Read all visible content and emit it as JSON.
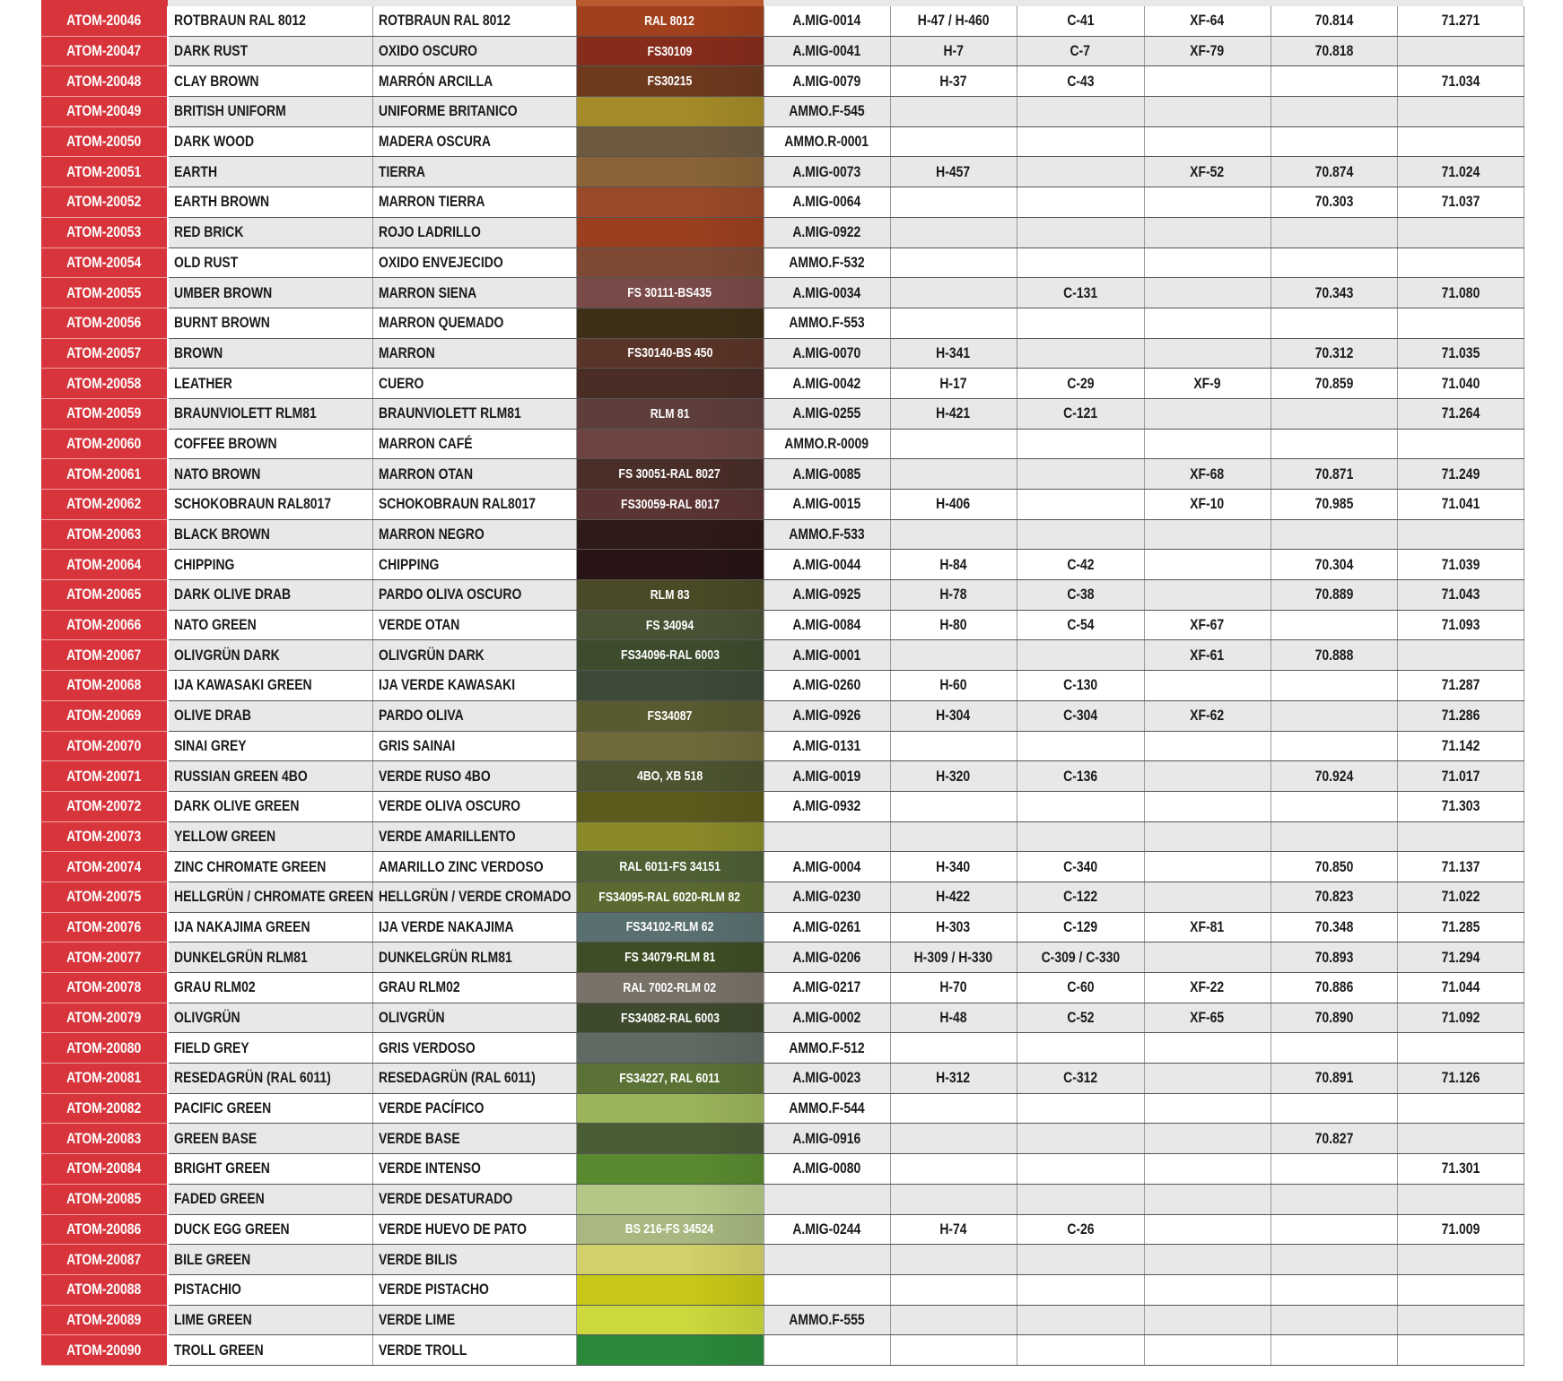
{
  "rows": [
    {
      "id": "ATOM-20046",
      "en": "ROTBRAUN RAL 8012",
      "es": "ROTBRAUN RAL 8012",
      "ref": "RAL 8012",
      "color": "#a0401c",
      "mig": "A.MIG-0014",
      "h": "H-47 / H-460",
      "c": "C-41",
      "xf": "XF-64",
      "v70": "70.814",
      "v71": "71.271"
    },
    {
      "id": "ATOM-20047",
      "en": "DARK RUST",
      "es": "OXIDO OSCURO",
      "ref": "FS30109",
      "color": "#862c1c",
      "mig": "A.MIG-0041",
      "h": "H-7",
      "c": "C-7",
      "xf": "XF-79",
      "v70": "70.818",
      "v71": ""
    },
    {
      "id": "ATOM-20048",
      "en": "CLAY BROWN",
      "es": "MARRÓN ARCILLA",
      "ref": "FS30215",
      "color": "#6e3a1e",
      "mig": "A.MIG-0079",
      "h": "H-37",
      "c": "C-43",
      "xf": "",
      "v70": "",
      "v71": "71.034"
    },
    {
      "id": "ATOM-20049",
      "en": "BRITISH UNIFORM",
      "es": "UNIFORME BRITANICO",
      "ref": "",
      "color": "#a48a28",
      "mig": "AMMO.F-545",
      "h": "",
      "c": "",
      "xf": "",
      "v70": "",
      "v71": ""
    },
    {
      "id": "ATOM-20050",
      "en": "DARK WOOD",
      "es": "MADERA OSCURA",
      "ref": "",
      "color": "#6e5a40",
      "mig": "AMMO.R-0001",
      "h": "",
      "c": "",
      "xf": "",
      "v70": "",
      "v71": ""
    },
    {
      "id": "ATOM-20051",
      "en": "EARTH",
      "es": "TIERRA",
      "ref": "",
      "color": "#8a6438",
      "mig": "A.MIG-0073",
      "h": "H-457",
      "c": "",
      "xf": "XF-52",
      "v70": "70.874",
      "v71": "71.024"
    },
    {
      "id": "ATOM-20052",
      "en": "EARTH BROWN",
      "es": "MARRON TIERRA",
      "ref": "",
      "color": "#9a4a2a",
      "mig": "A.MIG-0064",
      "h": "",
      "c": "",
      "xf": "",
      "v70": "70.303",
      "v71": "71.037"
    },
    {
      "id": "ATOM-20053",
      "en": "RED BRICK",
      "es": "ROJO LADRILLO",
      "ref": "",
      "color": "#9a4020",
      "mig": "A.MIG-0922",
      "h": "",
      "c": "",
      "xf": "",
      "v70": "",
      "v71": ""
    },
    {
      "id": "ATOM-20054",
      "en": "OLD RUST",
      "es": "OXIDO ENVEJECIDO",
      "ref": "",
      "color": "#7e4a34",
      "mig": "AMMO.F-532",
      "h": "",
      "c": "",
      "xf": "",
      "v70": "",
      "v71": ""
    },
    {
      "id": "ATOM-20055",
      "en": "UMBER BROWN",
      "es": "MARRON SIENA",
      "ref": "FS 30111-BS435",
      "color": "#7a4a48",
      "mig": "A.MIG-0034",
      "h": "",
      "c": "C-131",
      "xf": "",
      "v70": "70.343",
      "v71": "71.080"
    },
    {
      "id": "ATOM-20056",
      "en": "BURNT BROWN",
      "es": "MARRON QUEMADO",
      "ref": "",
      "color": "#3e3018",
      "mig": "AMMO.F-553",
      "h": "",
      "c": "",
      "xf": "",
      "v70": "",
      "v71": ""
    },
    {
      "id": "ATOM-20057",
      "en": "BROWN",
      "es": "MARRON",
      "ref": "FS30140-BS 450",
      "color": "#5a3428",
      "mig": "A.MIG-0070",
      "h": "H-341",
      "c": "",
      "xf": "",
      "v70": "70.312",
      "v71": "71.035"
    },
    {
      "id": "ATOM-20058",
      "en": "LEATHER",
      "es": "CUERO",
      "ref": "",
      "color": "#4a2e26",
      "mig": "A.MIG-0042",
      "h": "H-17",
      "c": "C-29",
      "xf": "XF-9",
      "v70": "70.859",
      "v71": "71.040"
    },
    {
      "id": "ATOM-20059",
      "en": "BRAUNVIOLETT RLM81",
      "es": "BRAUNVIOLETT RLM81",
      "ref": "RLM 81",
      "color": "#5e3e3a",
      "mig": "A.MIG-0255",
      "h": "H-421",
      "c": "C-121",
      "xf": "",
      "v70": "",
      "v71": "71.264"
    },
    {
      "id": "ATOM-20060",
      "en": "COFFEE BROWN",
      "es": "MARRON CAFÉ",
      "ref": "",
      "color": "#6e4442",
      "mig": "AMMO.R-0009",
      "h": "",
      "c": "",
      "xf": "",
      "v70": "",
      "v71": ""
    },
    {
      "id": "ATOM-20061",
      "en": "NATO BROWN",
      "es": "MARRON OTAN",
      "ref": "FS 30051-RAL 8027",
      "color": "#4a2e28",
      "mig": "A.MIG-0085",
      "h": "",
      "c": "",
      "xf": "XF-68",
      "v70": "70.871",
      "v71": "71.249"
    },
    {
      "id": "ATOM-20062",
      "en": "SCHOKOBRAUN RAL8017",
      "es": "SCHOKOBRAUN RAL8017",
      "ref": "FS30059-RAL 8017",
      "color": "#5a3432",
      "mig": "A.MIG-0015",
      "h": "H-406",
      "c": "",
      "xf": "XF-10",
      "v70": "70.985",
      "v71": "71.041"
    },
    {
      "id": "ATOM-20063",
      "en": "BLACK BROWN",
      "es": "MARRON NEGRO",
      "ref": "",
      "color": "#2e1a18",
      "mig": "AMMO.F-533",
      "h": "",
      "c": "",
      "xf": "",
      "v70": "",
      "v71": ""
    },
    {
      "id": "ATOM-20064",
      "en": "CHIPPING",
      "es": "CHIPPING",
      "ref": "",
      "color": "#281414",
      "mig": "A.MIG-0044",
      "h": "H-84",
      "c": "C-42",
      "xf": "",
      "v70": "70.304",
      "v71": "71.039"
    },
    {
      "id": "ATOM-20065",
      "en": "DARK OLIVE DRAB",
      "es": "PARDO OLIVA OSCURO",
      "ref": "RLM 83",
      "color": "#4a4a26",
      "mig": "A.MIG-0925",
      "h": "H-78",
      "c": "C-38",
      "xf": "",
      "v70": "70.889",
      "v71": "71.043"
    },
    {
      "id": "ATOM-20066",
      "en": "NATO GREEN",
      "es": "VERDE OTAN",
      "ref": "FS 34094",
      "color": "#4a5236",
      "mig": "A.MIG-0084",
      "h": "H-80",
      "c": "C-54",
      "xf": "XF-67",
      "v70": "",
      "v71": "71.093"
    },
    {
      "id": "ATOM-20067",
      "en": "OLIVGRÜN DARK",
      "es": "OLIVGRÜN DARK",
      "ref": "FS34096-RAL 6003",
      "color": "#3e4c2e",
      "mig": "A.MIG-0001",
      "h": "",
      "c": "",
      "xf": "XF-61",
      "v70": "70.888",
      "v71": ""
    },
    {
      "id": "ATOM-20068",
      "en": "IJA KAWASAKI GREEN",
      "es": "IJA VERDE KAWASAKI",
      "ref": "",
      "color": "#3e4a38",
      "mig": "A.MIG-0260",
      "h": "H-60",
      "c": "C-130",
      "xf": "",
      "v70": "",
      "v71": "71.287"
    },
    {
      "id": "ATOM-20069",
      "en": "OLIVE DRAB",
      "es": "PARDO OLIVA",
      "ref": "FS34087",
      "color": "#5a5a30",
      "mig": "A.MIG-0926",
      "h": "H-304",
      "c": "C-304",
      "xf": "XF-62",
      "v70": "",
      "v71": "71.286"
    },
    {
      "id": "ATOM-20070",
      "en": "SINAI GREY",
      "es": "GRIS SAINAI",
      "ref": "",
      "color": "#706a3a",
      "mig": "A.MIG-0131",
      "h": "",
      "c": "",
      "xf": "",
      "v70": "",
      "v71": "71.142"
    },
    {
      "id": "ATOM-20071",
      "en": "RUSSIAN GREEN 4BO",
      "es": "VERDE RUSO 4BO",
      "ref": "4BO, XB 518",
      "color": "#4c5430",
      "mig": "A.MIG-0019",
      "h": "H-320",
      "c": "C-136",
      "xf": "",
      "v70": "70.924",
      "v71": "71.017"
    },
    {
      "id": "ATOM-20072",
      "en": "DARK OLIVE GREEN",
      "es": "VERDE OLIVA OSCURO",
      "ref": "",
      "color": "#5c5a1c",
      "mig": "A.MIG-0932",
      "h": "",
      "c": "",
      "xf": "",
      "v70": "",
      "v71": "71.303"
    },
    {
      "id": "ATOM-20073",
      "en": "YELLOW GREEN",
      "es": "VERDE AMARILLENTO",
      "ref": "",
      "color": "#8a8a2a",
      "mig": "",
      "h": "",
      "c": "",
      "xf": "",
      "v70": "",
      "v71": ""
    },
    {
      "id": "ATOM-20074",
      "en": "ZINC CHROMATE GREEN",
      "es": "AMARILLO ZINC VERDOSO",
      "ref": "RAL 6011-FS 34151",
      "color": "#4e6034",
      "mig": "A.MIG-0004",
      "h": "H-340",
      "c": "C-340",
      "xf": "",
      "v70": "70.850",
      "v71": "71.137"
    },
    {
      "id": "ATOM-20075",
      "en": "HELLGRÜN / CHROMATE GREEN",
      "es": "HELLGRÜN / VERDE CROMADO",
      "ref": "FS34095-RAL 6020-RLM 82",
      "color": "#5a6a30",
      "mig": "A.MIG-0230",
      "h": "H-422",
      "c": "C-122",
      "xf": "",
      "v70": "70.823",
      "v71": "71.022"
    },
    {
      "id": "ATOM-20076",
      "en": "IJA NAKAJIMA GREEN",
      "es": "IJA VERDE NAKAJIMA",
      "ref": "FS34102-RLM 62",
      "color": "#5a7070",
      "mig": "A.MIG-0261",
      "h": "H-303",
      "c": "C-129",
      "xf": "XF-81",
      "v70": "70.348",
      "v71": "71.285"
    },
    {
      "id": "ATOM-20077",
      "en": "DUNKELGRÜN RLM81",
      "es": "DUNKELGRÜN RLM81",
      "ref": "FS 34079-RLM 81",
      "color": "#3e4e24",
      "mig": "A.MIG-0206",
      "h": "H-309 / H-330",
      "c": "C-309 / C-330",
      "xf": "",
      "v70": "70.893",
      "v71": "71.294"
    },
    {
      "id": "ATOM-20078",
      "en": "GRAU RLM02",
      "es": "GRAU RLM02",
      "ref": "RAL 7002-RLM 02",
      "color": "#787268",
      "mig": "A.MIG-0217",
      "h": "H-70",
      "c": "C-60",
      "xf": "XF-22",
      "v70": "70.886",
      "v71": "71.044"
    },
    {
      "id": "ATOM-20079",
      "en": "OLIVGRÜN",
      "es": "OLIVGRÜN",
      "ref": "FS34082-RAL 6003",
      "color": "#3e4a2e",
      "mig": "A.MIG-0002",
      "h": "H-48",
      "c": "C-52",
      "xf": "XF-65",
      "v70": "70.890",
      "v71": "71.092"
    },
    {
      "id": "ATOM-20080",
      "en": "FIELD GREY",
      "es": "GRIS VERDOSO",
      "ref": "",
      "color": "#5e6a62",
      "mig": "AMMO.F-512",
      "h": "",
      "c": "",
      "xf": "",
      "v70": "",
      "v71": ""
    },
    {
      "id": "ATOM-20081",
      "en": "RESEDAGRÜN (RAL 6011)",
      "es": "RESEDAGRÜN (RAL 6011)",
      "ref": "FS34227, RAL 6011",
      "color": "#5a7236",
      "mig": "A.MIG-0023",
      "h": "H-312",
      "c": "C-312",
      "xf": "",
      "v70": "70.891",
      "v71": "71.126"
    },
    {
      "id": "ATOM-20082",
      "en": "PACIFIC GREEN",
      "es": "VERDE PACÍFICO",
      "ref": "",
      "color": "#9ab45a",
      "mig": "AMMO.F-544",
      "h": "",
      "c": "",
      "xf": "",
      "v70": "",
      "v71": ""
    },
    {
      "id": "ATOM-20083",
      "en": "GREEN BASE",
      "es": "VERDE BASE",
      "ref": "",
      "color": "#4a5e36",
      "mig": "A.MIG-0916",
      "h": "",
      "c": "",
      "xf": "",
      "v70": "70.827",
      "v71": ""
    },
    {
      "id": "ATOM-20084",
      "en": "BRIGHT GREEN",
      "es": "VERDE INTENSO",
      "ref": "",
      "color": "#5a8a30",
      "mig": "A.MIG-0080",
      "h": "",
      "c": "",
      "xf": "",
      "v70": "",
      "v71": "71.301"
    },
    {
      "id": "ATOM-20085",
      "en": "FADED GREEN",
      "es": "VERDE DESATURADO",
      "ref": "",
      "color": "#b4c886",
      "mig": "",
      "h": "",
      "c": "",
      "xf": "",
      "v70": "",
      "v71": ""
    },
    {
      "id": "ATOM-20086",
      "en": "DUCK EGG GREEN",
      "es": "VERDE HUEVO DE PATO",
      "ref": "BS 216-FS 34524",
      "color": "#a8b880",
      "mig": "A.MIG-0244",
      "h": "H-74",
      "c": "C-26",
      "xf": "",
      "v70": "",
      "v71": "71.009"
    },
    {
      "id": "ATOM-20087",
      "en": "BILE GREEN",
      "es": "VERDE BILIS",
      "ref": "",
      "color": "#d2d068",
      "mig": "",
      "h": "",
      "c": "",
      "xf": "",
      "v70": "",
      "v71": ""
    },
    {
      "id": "ATOM-20088",
      "en": "PISTACHIO",
      "es": "VERDE PISTACHO",
      "ref": "",
      "color": "#c8c818",
      "mig": "",
      "h": "",
      "c": "",
      "xf": "",
      "v70": "",
      "v71": ""
    },
    {
      "id": "ATOM-20089",
      "en": "LIME GREEN",
      "es": "VERDE LIME",
      "ref": "",
      "color": "#ccd83c",
      "mig": "AMMO.F-555",
      "h": "",
      "c": "",
      "xf": "",
      "v70": "",
      "v71": ""
    },
    {
      "id": "ATOM-20090",
      "en": "TROLL GREEN",
      "es": "VERDE TROLL",
      "ref": "",
      "color": "#2a8a3a",
      "mig": "",
      "h": "",
      "c": "",
      "xf": "",
      "v70": "",
      "v71": ""
    }
  ],
  "colors": {
    "id_cell": "#d8343c",
    "row_alt": "#e8e8e8",
    "previous_row_swatch": "#b85a2e"
  }
}
